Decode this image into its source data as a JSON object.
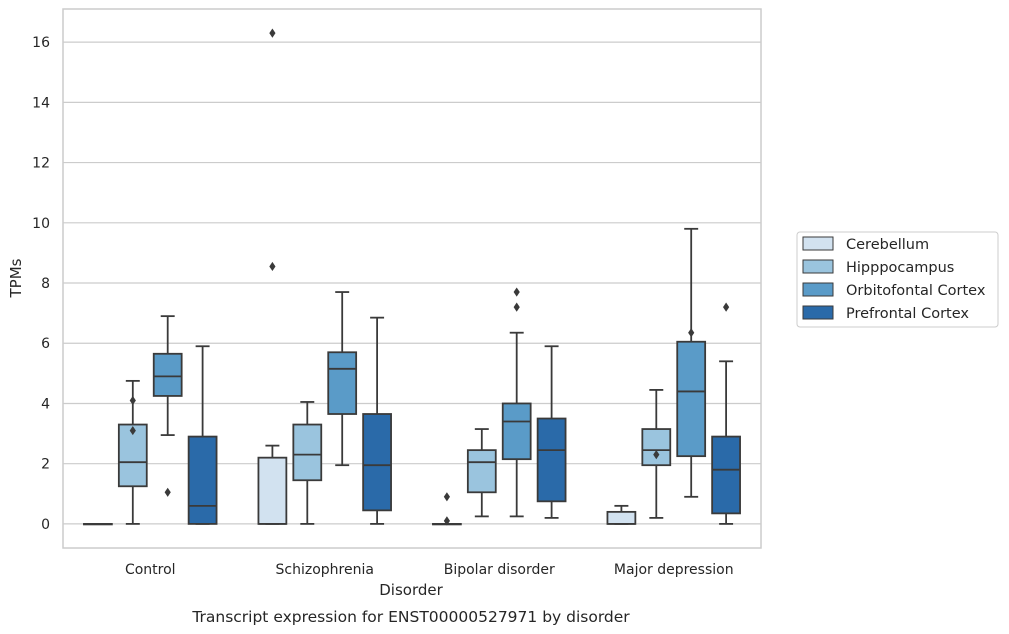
{
  "caption": "Transcript expression for ENST00000527971 by disorder",
  "chart_data": {
    "type": "box",
    "xlabel": "Disorder",
    "ylabel": "TPMs",
    "ylim": [
      -0.8,
      17.1
    ],
    "yticks": [
      0,
      2,
      4,
      6,
      8,
      10,
      12,
      14,
      16
    ],
    "grid": "horizontal",
    "legend_position": "right",
    "categories": [
      "Control",
      "Schizophrenia",
      "Bipolar disorder",
      "Major depression"
    ],
    "series": [
      {
        "name": "Cerebellum",
        "color": "#d2e2f0",
        "boxes": [
          {
            "whislo": 0,
            "q1": 0,
            "med": 0,
            "q3": 0,
            "whishi": 0,
            "fliers": []
          },
          {
            "whislo": 0,
            "q1": 0,
            "med": 0,
            "q3": 2.2,
            "whishi": 2.6,
            "fliers": [
              8.55,
              16.3
            ]
          },
          {
            "whislo": 0,
            "q1": 0,
            "med": 0,
            "q3": 0,
            "whishi": 0,
            "fliers": [
              0.1,
              0.9
            ]
          },
          {
            "whislo": 0,
            "q1": 0,
            "med": 0,
            "q3": 0.4,
            "whishi": 0.6,
            "fliers": []
          }
        ]
      },
      {
        "name": "Hipppocampus",
        "color": "#9ac4de",
        "boxes": [
          {
            "whislo": 0,
            "q1": 1.25,
            "med": 2.05,
            "q3": 3.3,
            "whishi": 4.75,
            "fliers": [
              3.1,
              4.1
            ]
          },
          {
            "whislo": 0,
            "q1": 1.45,
            "med": 2.3,
            "q3": 3.3,
            "whishi": 4.05,
            "fliers": []
          },
          {
            "whislo": 0.25,
            "q1": 1.05,
            "med": 2.05,
            "q3": 2.45,
            "whishi": 3.15,
            "fliers": []
          },
          {
            "whislo": 0.2,
            "q1": 1.95,
            "med": 2.45,
            "q3": 3.15,
            "whishi": 4.45,
            "fliers": [
              2.3
            ]
          }
        ]
      },
      {
        "name": "Orbitofontal Cortex",
        "color": "#5a9bc8",
        "boxes": [
          {
            "whislo": 2.95,
            "q1": 4.25,
            "med": 4.9,
            "q3": 5.65,
            "whishi": 6.9,
            "fliers": [
              1.05
            ]
          },
          {
            "whislo": 1.95,
            "q1": 3.65,
            "med": 5.15,
            "q3": 5.7,
            "whishi": 7.7,
            "fliers": []
          },
          {
            "whislo": 0.25,
            "q1": 2.15,
            "med": 3.4,
            "q3": 4.0,
            "whishi": 6.35,
            "fliers": [
              7.2,
              7.7
            ]
          },
          {
            "whislo": 0.9,
            "q1": 2.25,
            "med": 4.4,
            "q3": 6.05,
            "whishi": 9.8,
            "fliers": [
              6.35
            ]
          }
        ]
      },
      {
        "name": "Prefrontal Cortex",
        "color": "#2a6aa9",
        "boxes": [
          {
            "whislo": 0,
            "q1": 0,
            "med": 0.6,
            "q3": 2.9,
            "whishi": 5.9,
            "fliers": []
          },
          {
            "whislo": 0,
            "q1": 0.45,
            "med": 1.95,
            "q3": 3.65,
            "whishi": 6.85,
            "fliers": []
          },
          {
            "whislo": 0.2,
            "q1": 0.75,
            "med": 2.45,
            "q3": 3.5,
            "whishi": 5.9,
            "fliers": []
          },
          {
            "whislo": 0,
            "q1": 0.35,
            "med": 1.8,
            "q3": 2.9,
            "whishi": 5.4,
            "fliers": [
              7.2
            ]
          }
        ]
      }
    ]
  }
}
